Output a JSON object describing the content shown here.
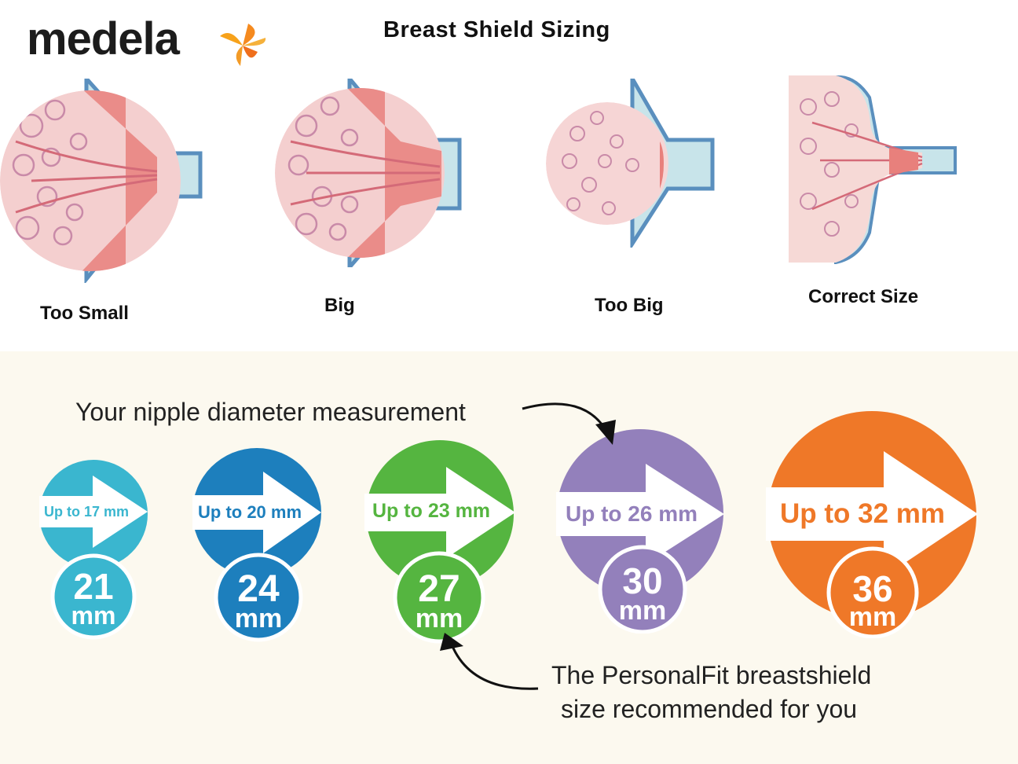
{
  "header": {
    "brand": "medela",
    "brand_icon": "flower-icon",
    "title": "Breast Shield Sizing"
  },
  "fit_examples": [
    {
      "caption": "Too Small"
    },
    {
      "caption": "Big"
    },
    {
      "caption": "Too Big"
    },
    {
      "caption": "Correct Size"
    }
  ],
  "annotations": {
    "top": "Your nipple diameter measurement",
    "bottom_line1": "The PersonalFit breastshield",
    "bottom_line2": "size recommended for you"
  },
  "sizes": [
    {
      "up_to": "Up to 17 mm",
      "size": "21",
      "unit": "mm",
      "color": "#3ab6cf"
    },
    {
      "up_to": "Up to 20 mm",
      "size": "24",
      "unit": "mm",
      "color": "#1d7fbd"
    },
    {
      "up_to": "Up to 23 mm",
      "size": "27",
      "unit": "mm",
      "color": "#55b540"
    },
    {
      "up_to": "Up to 26 mm",
      "size": "30",
      "unit": "mm",
      "color": "#9380bb"
    },
    {
      "up_to": "Up to 32 mm",
      "size": "36",
      "unit": "mm",
      "color": "#ef7828"
    }
  ]
}
